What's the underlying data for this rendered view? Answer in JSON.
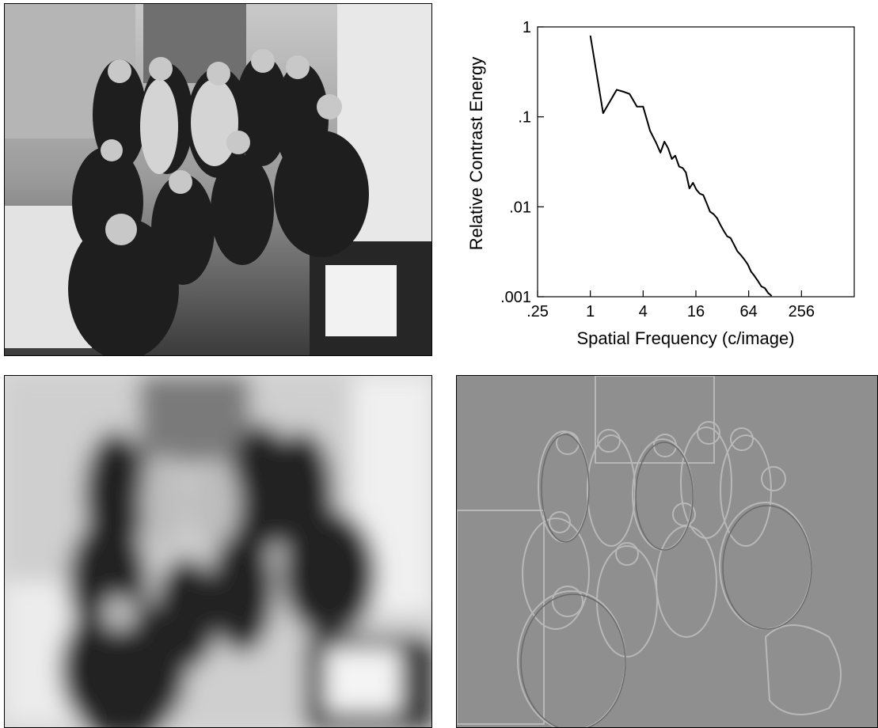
{
  "panels": {
    "original_photo": {},
    "lowpass_photo": {},
    "highpass_photo": {}
  },
  "chart_data": {
    "type": "line",
    "title": "",
    "xlabel": "Spatial Frequency (c/image)",
    "ylabel": "Relative Contrast Energy",
    "x_scale": "log2",
    "y_scale": "log10",
    "xlim": [
      0.25,
      1024
    ],
    "ylim": [
      0.001,
      1
    ],
    "x_ticks": [
      0.25,
      1,
      4,
      16,
      64,
      256
    ],
    "x_tick_labels": [
      ".25",
      "1",
      "4",
      "16",
      "64",
      "256"
    ],
    "y_ticks": [
      0.001,
      0.01,
      0.1,
      1
    ],
    "y_tick_labels": [
      ".001",
      ".01",
      ".1",
      "1"
    ],
    "grid": false,
    "series": [
      {
        "x": [
          1,
          1.4,
          2,
          2.4,
          2.8,
          3.4,
          4,
          4.8,
          5.6,
          6.3,
          7,
          7.7,
          8.5,
          9.3,
          10.3,
          11.3,
          12.3,
          13.5,
          14.8,
          16.2,
          17.7,
          19.4,
          21.2,
          23.2,
          25.4,
          27.8,
          30.4,
          33.3,
          36.4,
          39.8,
          43.5,
          47.6,
          52.1,
          57,
          62.3,
          68.2,
          74.6,
          81.6,
          89.3,
          97.7,
          106.9,
          117
        ],
        "y": [
          0.8,
          0.11,
          0.2,
          0.19,
          0.18,
          0.13,
          0.13,
          0.07,
          0.052,
          0.04,
          0.053,
          0.045,
          0.034,
          0.037,
          0.028,
          0.027,
          0.024,
          0.016,
          0.0185,
          0.0155,
          0.014,
          0.0135,
          0.011,
          0.0088,
          0.0083,
          0.0075,
          0.0063,
          0.0054,
          0.0047,
          0.0045,
          0.0038,
          0.0032,
          0.0029,
          0.0026,
          0.0023,
          0.0019,
          0.0017,
          0.0015,
          0.0013,
          0.00125,
          0.0011,
          0.00102
        ]
      }
    ]
  }
}
